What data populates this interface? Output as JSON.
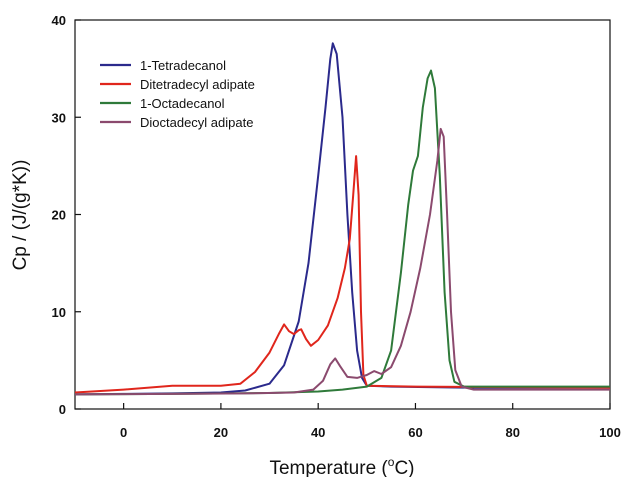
{
  "chart_data": {
    "type": "line",
    "xlabel_pre": "Temperature (",
    "xlabel_sup": "o",
    "xlabel_post": "C)",
    "ylabel": "Cp /  (J/(g*K))",
    "xlim": [
      -10,
      100
    ],
    "ylim": [
      0,
      40
    ],
    "xticks": [
      "0",
      "20",
      "40",
      "60",
      "80",
      "100"
    ],
    "yticks": [
      "0",
      "10",
      "20",
      "30",
      "40"
    ],
    "legend_position": "top-left",
    "series": [
      {
        "name": "1-Tetradecanol",
        "color": "#2b2a8c",
        "points": [
          [
            -10,
            1.5
          ],
          [
            0,
            1.55
          ],
          [
            10,
            1.6
          ],
          [
            20,
            1.7
          ],
          [
            25,
            1.9
          ],
          [
            30,
            2.6
          ],
          [
            33,
            4.5
          ],
          [
            36,
            9
          ],
          [
            38,
            15
          ],
          [
            40,
            24
          ],
          [
            41.5,
            31
          ],
          [
            42.5,
            36
          ],
          [
            43,
            37.6
          ],
          [
            43.8,
            36.5
          ],
          [
            45,
            30
          ],
          [
            46,
            20
          ],
          [
            47,
            12
          ],
          [
            48,
            6
          ],
          [
            49,
            3.2
          ],
          [
            50,
            2.4
          ],
          [
            55,
            2.3
          ],
          [
            70,
            2.2
          ],
          [
            100,
            2.2
          ]
        ]
      },
      {
        "name": "Ditetradecyl adipate",
        "color": "#e0261c",
        "points": [
          [
            -10,
            1.7
          ],
          [
            0,
            2.0
          ],
          [
            10,
            2.4
          ],
          [
            20,
            2.4
          ],
          [
            24,
            2.6
          ],
          [
            27,
            3.8
          ],
          [
            30,
            5.8
          ],
          [
            32,
            7.8
          ],
          [
            33,
            8.7
          ],
          [
            34,
            8.0
          ],
          [
            35,
            7.7
          ],
          [
            36,
            8.1
          ],
          [
            36.5,
            8.2
          ],
          [
            37.5,
            7.2
          ],
          [
            38.5,
            6.5
          ],
          [
            40,
            7.1
          ],
          [
            42,
            8.6
          ],
          [
            44,
            11.4
          ],
          [
            45.5,
            14.5
          ],
          [
            46.5,
            17.5
          ],
          [
            47.2,
            22
          ],
          [
            47.8,
            26
          ],
          [
            48.3,
            22
          ],
          [
            48.8,
            10
          ],
          [
            49.3,
            3.5
          ],
          [
            50,
            2.4
          ],
          [
            60,
            2.3
          ],
          [
            80,
            2.25
          ],
          [
            100,
            2.2
          ]
        ]
      },
      {
        "name": "1-Octadecanol",
        "color": "#2f7a3a",
        "points": [
          [
            -10,
            1.5
          ],
          [
            10,
            1.55
          ],
          [
            30,
            1.65
          ],
          [
            40,
            1.8
          ],
          [
            45,
            2.0
          ],
          [
            50,
            2.3
          ],
          [
            53,
            3.2
          ],
          [
            55,
            6
          ],
          [
            57,
            14
          ],
          [
            58.5,
            21
          ],
          [
            59.5,
            24.5
          ],
          [
            60.5,
            26
          ],
          [
            61.5,
            31
          ],
          [
            62.5,
            34
          ],
          [
            63.2,
            34.8
          ],
          [
            64,
            33
          ],
          [
            65,
            24
          ],
          [
            66,
            12
          ],
          [
            67,
            5
          ],
          [
            68,
            2.8
          ],
          [
            70,
            2.3
          ],
          [
            80,
            2.3
          ],
          [
            100,
            2.3
          ]
        ]
      },
      {
        "name": "Dioctadecyl adipate",
        "color": "#8b4a6e",
        "points": [
          [
            -10,
            1.5
          ],
          [
            10,
            1.55
          ],
          [
            25,
            1.6
          ],
          [
            35,
            1.7
          ],
          [
            39,
            2.0
          ],
          [
            41,
            2.9
          ],
          [
            42.5,
            4.6
          ],
          [
            43.5,
            5.2
          ],
          [
            44.5,
            4.4
          ],
          [
            46,
            3.3
          ],
          [
            48,
            3.2
          ],
          [
            50,
            3.5
          ],
          [
            51.5,
            3.9
          ],
          [
            53,
            3.6
          ],
          [
            55,
            4.3
          ],
          [
            57,
            6.5
          ],
          [
            59,
            10
          ],
          [
            61,
            14.5
          ],
          [
            63,
            20
          ],
          [
            64.5,
            25.5
          ],
          [
            65.2,
            28.8
          ],
          [
            65.8,
            28
          ],
          [
            66.5,
            20
          ],
          [
            67.3,
            10
          ],
          [
            68.2,
            4
          ],
          [
            69.5,
            2.3
          ],
          [
            72,
            2.0
          ],
          [
            100,
            2.0
          ]
        ]
      }
    ]
  }
}
